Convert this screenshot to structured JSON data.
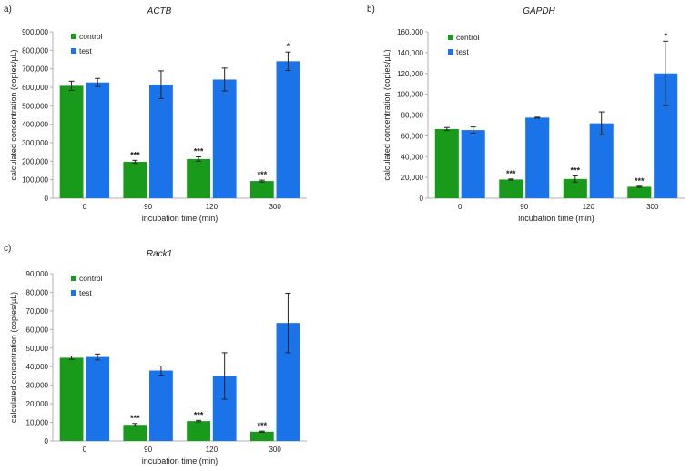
{
  "colors": {
    "control": "#1a9a1a",
    "test": "#1a73e8",
    "axis": "#b0b0b0",
    "error": "#222222"
  },
  "chart_data": [
    {
      "type": "bar",
      "panel": "a)",
      "title": "ACTB",
      "xlabel": "incubation time (min)",
      "ylabel": "calculated concentration (copies/µL)",
      "categories": [
        "0",
        "90",
        "120",
        "300"
      ],
      "ylim": [
        0,
        900000
      ],
      "yticks": [
        "0",
        "100,000",
        "200,000",
        "300,000",
        "400,000",
        "500,000",
        "600,000",
        "700,000",
        "800,000",
        "900,000"
      ],
      "series": [
        {
          "name": "control",
          "values": [
            608000,
            197000,
            212000,
            93000
          ],
          "errors": [
            25000,
            8000,
            12000,
            5000
          ],
          "sig": [
            "",
            "***",
            "***",
            "***"
          ]
        },
        {
          "name": "test",
          "values": [
            626000,
            614000,
            642000,
            741000
          ],
          "errors": [
            22000,
            75000,
            62000,
            50000
          ],
          "sig": [
            "",
            "",
            "",
            "*"
          ]
        }
      ]
    },
    {
      "type": "bar",
      "panel": "b)",
      "title": "GAPDH",
      "xlabel": "incubation time (min)",
      "ylabel": "calculated concentration (copies/µL)",
      "categories": [
        "0",
        "90",
        "120",
        "300"
      ],
      "ylim": [
        0,
        160000
      ],
      "yticks": [
        "0",
        "20,000",
        "40,000",
        "60,000",
        "80,000",
        "100,000",
        "120,000",
        "140,000",
        "160,000"
      ],
      "series": [
        {
          "name": "control",
          "values": [
            66500,
            18000,
            18500,
            11000
          ],
          "errors": [
            1500,
            500,
            3000,
            500
          ],
          "sig": [
            "",
            "***",
            "***",
            "***"
          ]
        },
        {
          "name": "test",
          "values": [
            65500,
            77500,
            72000,
            120000
          ],
          "errors": [
            3000,
            400,
            11000,
            31000
          ],
          "sig": [
            "",
            "",
            "",
            "*"
          ]
        }
      ]
    },
    {
      "type": "bar",
      "panel": "c)",
      "title": "Rack1",
      "xlabel": "incubation time (min)",
      "ylabel": "calculated concentration (copies/µL)",
      "categories": [
        "0",
        "90",
        "120",
        "300"
      ],
      "ylim": [
        0,
        90000
      ],
      "yticks": [
        "0",
        "10,000",
        "20,000",
        "30,000",
        "40,000",
        "50,000",
        "60,000",
        "70,000",
        "80,000",
        "90,000"
      ],
      "series": [
        {
          "name": "control",
          "values": [
            44800,
            8700,
            10700,
            5000
          ],
          "errors": [
            900,
            700,
            400,
            300
          ],
          "sig": [
            "",
            "***",
            "***",
            "***"
          ]
        },
        {
          "name": "test",
          "values": [
            45200,
            37900,
            35000,
            63500
          ],
          "errors": [
            1600,
            2500,
            12500,
            16000
          ],
          "sig": [
            "",
            "",
            "",
            ""
          ]
        }
      ]
    }
  ]
}
